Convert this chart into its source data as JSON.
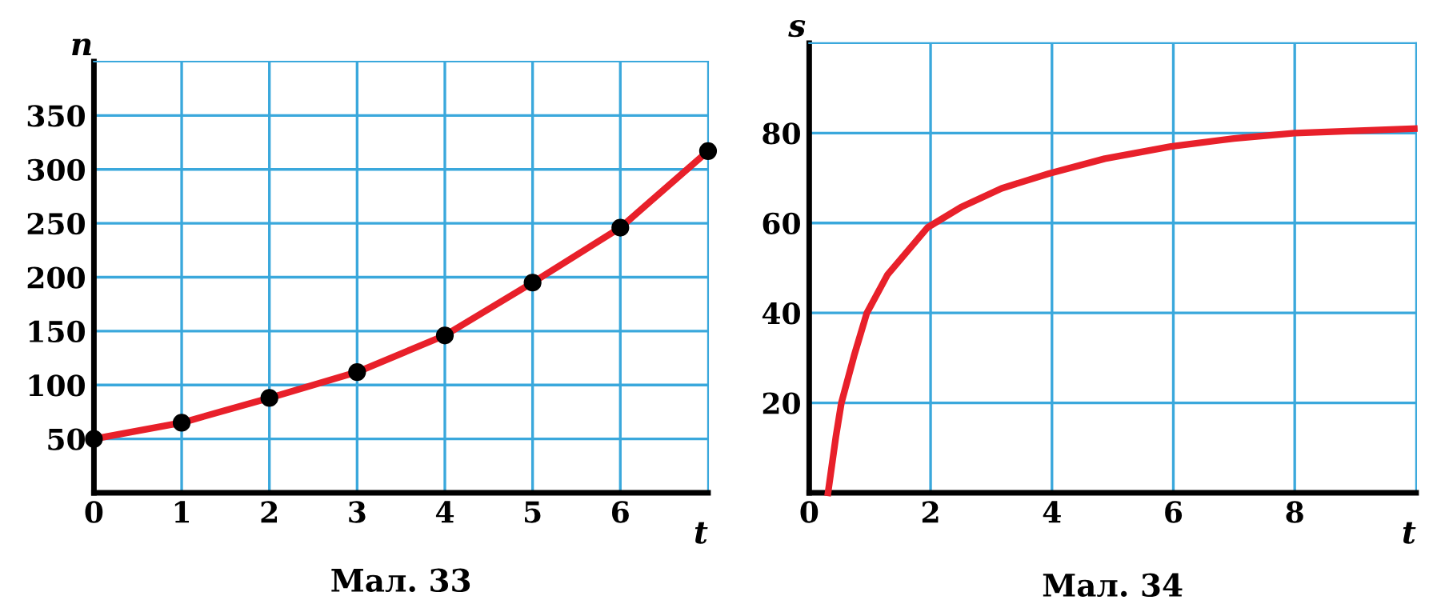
{
  "chart_data": [
    {
      "type": "line",
      "title": "Мал. 33",
      "xlabel": "t",
      "ylabel": "n",
      "x": [
        0,
        1,
        2,
        3,
        4,
        5,
        6,
        7
      ],
      "series": [
        {
          "color": "#e8202a",
          "values": [
            50,
            65,
            88,
            112,
            146,
            195,
            246,
            317
          ]
        }
      ],
      "marker": "circle",
      "line_style": "solid",
      "xlim": [
        0,
        7
      ],
      "ylim": [
        0,
        400
      ],
      "xticks": [
        0,
        1,
        2,
        3,
        4,
        5,
        6
      ],
      "yticks": [
        50,
        100,
        150,
        200,
        250,
        300,
        350
      ],
      "grid": true
    },
    {
      "type": "line",
      "title": "Мал. 34",
      "xlabel": "t",
      "ylabel": "s",
      "x": [
        0.31,
        0.44,
        0.53,
        0.74,
        0.95,
        1.29,
        1.95,
        2.5,
        3.17,
        3.95,
        4.87,
        5.96,
        7.0,
        8.0,
        9.97
      ],
      "series": [
        {
          "color": "#e8202a",
          "values": [
            0,
            12.5,
            20,
            30.5,
            40,
            48.5,
            59,
            63.5,
            67.7,
            71,
            74.3,
            77,
            78.8,
            80,
            81
          ]
        }
      ],
      "line_style": "solid",
      "xlim": [
        0,
        10
      ],
      "ylim": [
        0,
        100
      ],
      "xticks": [
        0,
        2,
        4,
        6,
        8
      ],
      "yticks": [
        20,
        40,
        60,
        80
      ],
      "grid": true
    }
  ]
}
